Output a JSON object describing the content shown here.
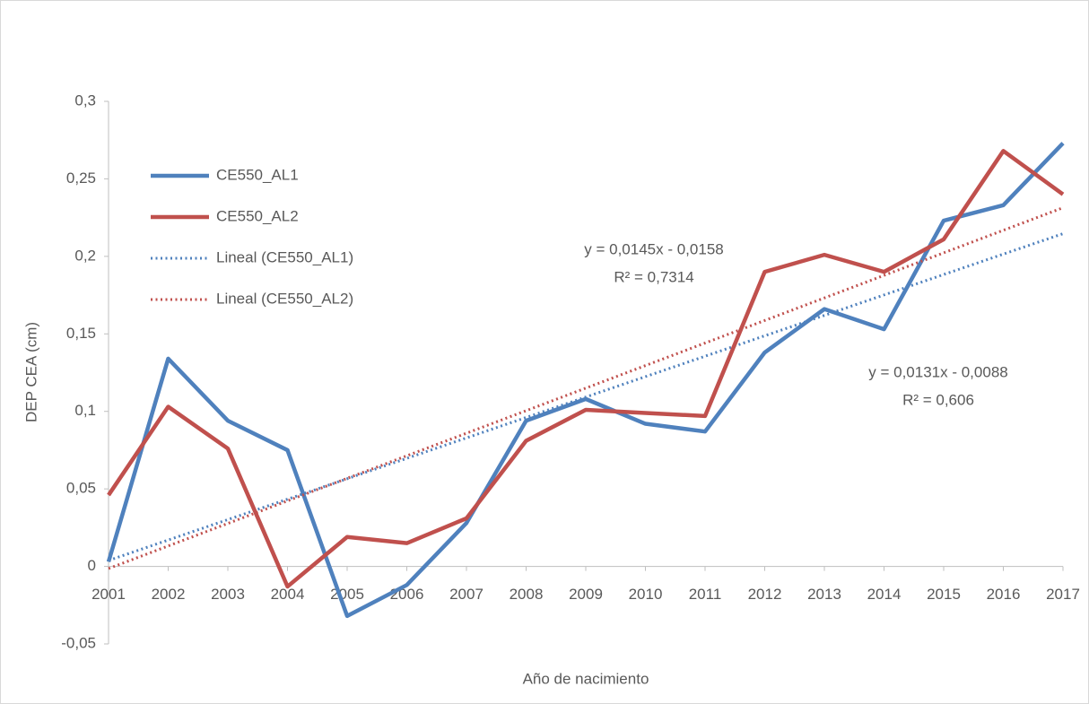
{
  "chart_data": {
    "type": "line",
    "y_label": "DEP CEA (cm)",
    "x_label": "Año de nacimiento",
    "categories": [
      "2001",
      "2002",
      "2003",
      "2004",
      "2005",
      "2006",
      "2007",
      "2008",
      "2009",
      "2010",
      "2011",
      "2012",
      "2013",
      "2014",
      "2015",
      "2016",
      "2017"
    ],
    "series": [
      {
        "name": "CE550_AL1",
        "color": "#4f81bd",
        "trend_name": "Lineal (CE550_AL1)",
        "trend_equation": "y = 0,0131x - 0,0088",
        "trend_r2": "R² = 0,606",
        "values": [
          0.003,
          0.134,
          0.094,
          0.075,
          -0.032,
          -0.012,
          0.028,
          0.094,
          0.108,
          0.092,
          0.087,
          0.138,
          0.166,
          0.153,
          0.223,
          0.233,
          0.273
        ]
      },
      {
        "name": "CE550_AL2",
        "color": "#c0504d",
        "trend_name": "Lineal (CE550_AL2)",
        "trend_equation": "y = 0,0145x - 0,0158",
        "trend_r2": "R² = 0,7314",
        "values": [
          0.046,
          0.103,
          0.076,
          -0.013,
          0.019,
          0.015,
          0.031,
          0.081,
          0.101,
          0.099,
          0.097,
          0.19,
          0.201,
          0.19,
          0.211,
          0.268,
          0.24
        ]
      }
    ],
    "ylim": [
      -0.05,
      0.3
    ],
    "yticks": [
      {
        "value": -0.05,
        "label": "-0,05"
      },
      0,
      {
        "value": 0.05,
        "label": "0,05"
      },
      {
        "value": 0.1,
        "label": "0,1"
      },
      {
        "value": 0.15,
        "label": "0,15"
      },
      {
        "value": 0.2,
        "label": "0,2"
      },
      {
        "value": 0.25,
        "label": "0,25"
      },
      {
        "value": 0.3,
        "label": "0,3"
      }
    ],
    "trendlines": true
  }
}
